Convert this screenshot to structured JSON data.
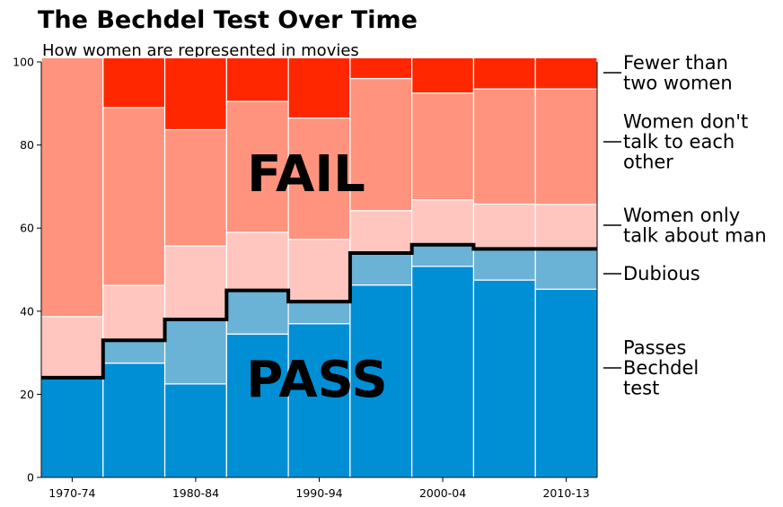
{
  "chart_data": {
    "type": "bar",
    "stacked": true,
    "title": "The Bechdel Test Over Time",
    "subtitle": "How women are represented in movies",
    "xlabel": "",
    "ylabel": "",
    "ylim": [
      0,
      100
    ],
    "yticks": [
      0,
      20,
      40,
      60,
      80,
      100
    ],
    "x_tick_labels": [
      "1970-74",
      "1980-84",
      "1990-94",
      "2000-04",
      "2010-13"
    ],
    "x_tick_label_bin_index": [
      0,
      2,
      4,
      6,
      8
    ],
    "bins": 9,
    "series": [
      {
        "name": "Passes Bechdel test",
        "color": "#008fd5",
        "values": [
          24.0,
          27.5,
          22.5,
          34.5,
          37.0,
          46.3,
          50.8,
          47.5,
          45.3
        ]
      },
      {
        "name": "Dubious",
        "color": "#6ab2d6",
        "values": [
          0.0,
          5.5,
          15.5,
          10.5,
          5.3,
          7.7,
          5.2,
          7.5,
          9.7
        ]
      },
      {
        "name": "Women only talk about man",
        "color": "#ffc6bf",
        "values": [
          14.7,
          13.2,
          17.7,
          14.0,
          15.0,
          10.2,
          10.8,
          10.8,
          10.7
        ]
      },
      {
        "name": "Women don't talk to each other",
        "color": "#ff937e",
        "values": [
          62.3,
          42.8,
          28.0,
          31.5,
          29.2,
          31.8,
          25.7,
          27.7,
          27.8
        ]
      },
      {
        "name": "Fewer than two women",
        "color": "#ff2700",
        "values": [
          0.0,
          12.0,
          17.3,
          10.5,
          14.5,
          5.0,
          8.5,
          7.5,
          7.5
        ]
      }
    ],
    "pass_threshold": [
      24.0,
      33.0,
      38.0,
      45.0,
      42.3,
      54.0,
      56.0,
      55.0,
      55.0
    ],
    "annotations": [
      "FAIL",
      "PASS"
    ],
    "legend_placement": "right",
    "grid": false
  },
  "legend_labels": [
    {
      "lines": [
        "Fewer than",
        "two women"
      ],
      "series": 4
    },
    {
      "lines": [
        "Women don't",
        "talk to each",
        "other"
      ],
      "series": 3
    },
    {
      "lines": [
        "Women only",
        "talk about man"
      ],
      "series": 2
    },
    {
      "lines": [
        "Dubious"
      ],
      "series": 1
    },
    {
      "lines": [
        "Passes",
        "Bechdel",
        "test"
      ],
      "series": 0
    }
  ]
}
